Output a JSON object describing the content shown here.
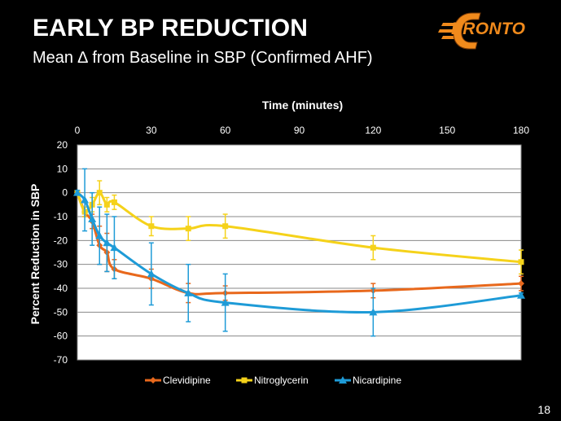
{
  "slide": {
    "title": "EARLY BP REDUCTION",
    "subtitle": "Mean ∆ from Baseline in SBP (Confirmed AHF)",
    "logo_text": "PRONTO",
    "page_number": "18"
  },
  "chart_data": {
    "type": "line",
    "title": "",
    "xlabel": "Time (minutes)",
    "ylabel": "Percent Reduction in SBP",
    "xlim": [
      0,
      180
    ],
    "ylim": [
      -70,
      20
    ],
    "x_ticks": [
      0,
      30,
      60,
      90,
      120,
      150,
      180
    ],
    "y_ticks": [
      20,
      10,
      0,
      -10,
      -20,
      -30,
      -40,
      -50,
      -60,
      -70
    ],
    "x_axis_position": "top",
    "grid": true,
    "legend": "bottom",
    "series": [
      {
        "name": "Clevidipine",
        "color": "#e8681c",
        "marker": "diamond",
        "x": [
          0,
          3,
          6,
          9,
          12,
          15,
          30,
          45,
          60,
          120,
          180
        ],
        "y": [
          0,
          -8,
          -12,
          -22,
          -25,
          -32,
          -36,
          -42,
          -42,
          -41,
          -38
        ],
        "err": [
          1,
          2,
          3,
          8,
          8,
          4,
          4,
          4,
          3,
          3,
          3
        ]
      },
      {
        "name": "Nitroglycerin",
        "color": "#f5d21a",
        "marker": "square",
        "x": [
          0,
          3,
          6,
          9,
          12,
          15,
          30,
          45,
          60,
          120,
          180
        ],
        "y": [
          0,
          -8,
          -5,
          0,
          -5,
          -4,
          -14,
          -15,
          -14,
          -23,
          -29
        ],
        "err": [
          1,
          2,
          3,
          5,
          3,
          3,
          4,
          5,
          5,
          5,
          5
        ]
      },
      {
        "name": "Nicardipine",
        "color": "#1e9bd7",
        "marker": "triangle",
        "x": [
          0,
          3,
          6,
          9,
          12,
          15,
          30,
          45,
          60,
          120,
          180
        ],
        "y": [
          0,
          -3,
          -11,
          -18,
          -21,
          -23,
          -34,
          -42,
          -46,
          -50,
          -43
        ],
        "err": [
          1,
          13,
          11,
          12,
          12,
          13,
          13,
          12,
          12,
          10,
          1
        ]
      }
    ]
  }
}
